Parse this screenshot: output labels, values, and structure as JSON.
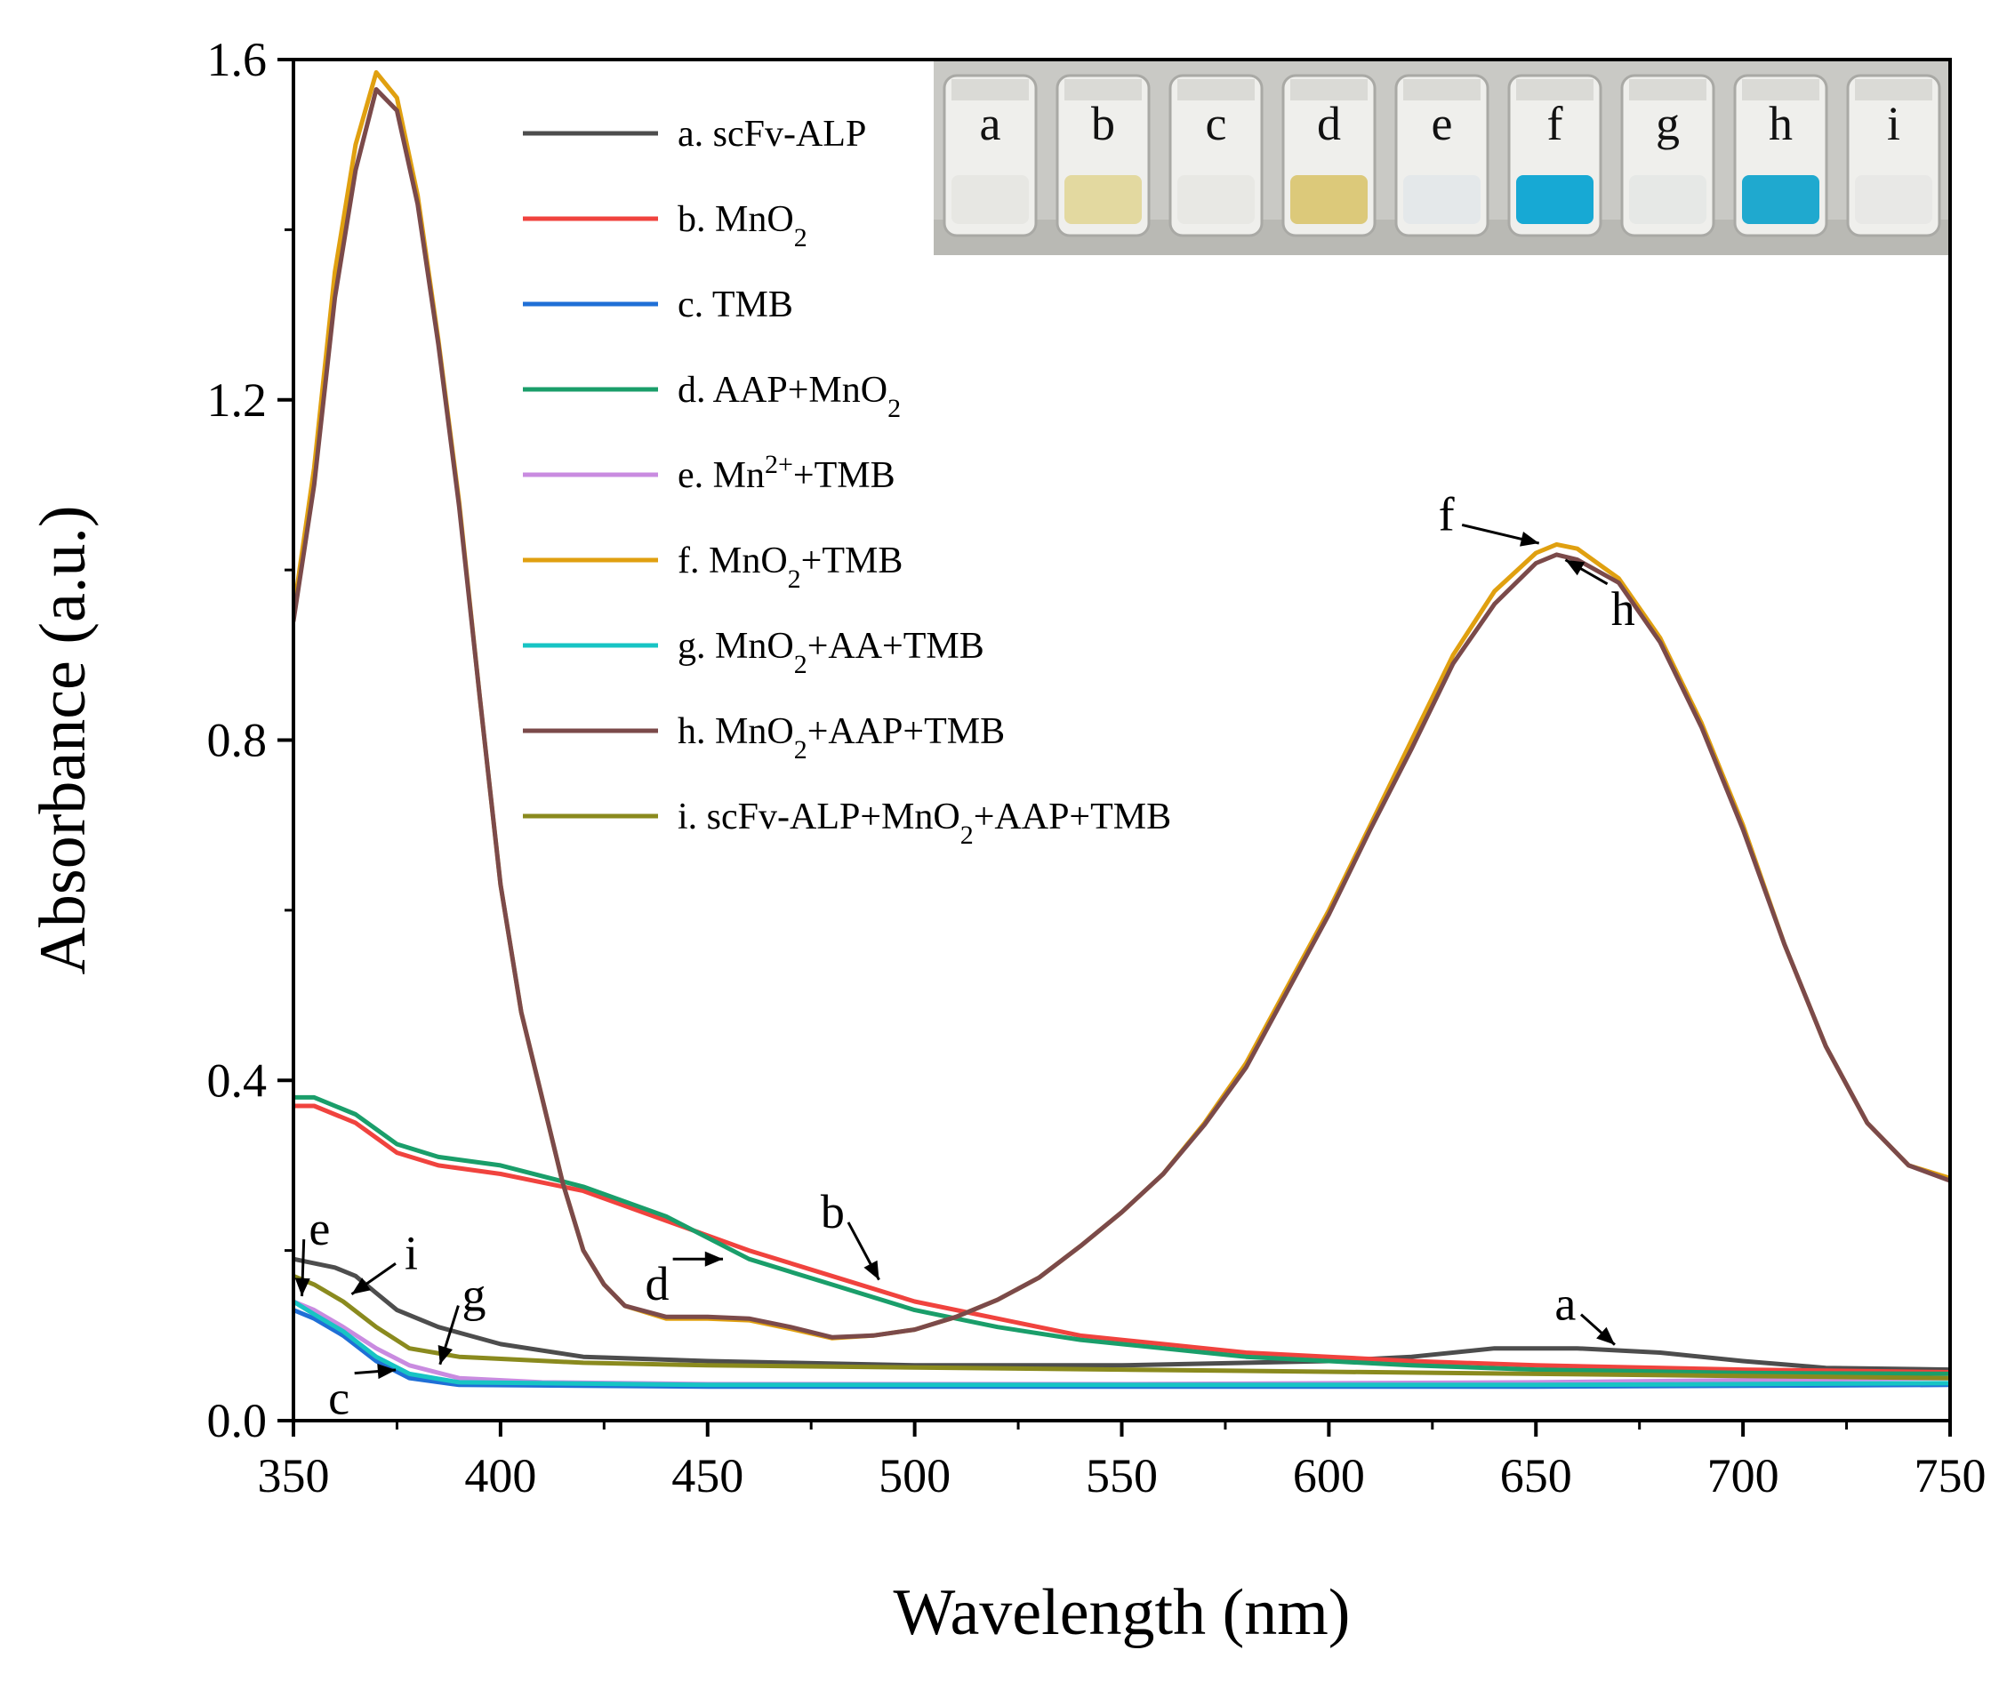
{
  "chart_data": {
    "type": "line",
    "xlabel": "Wavelength (nm)",
    "ylabel": "Absorbance (a.u.)",
    "xlim": [
      350,
      750
    ],
    "ylim": [
      0,
      1.6
    ],
    "x_ticks": [
      350,
      400,
      450,
      500,
      550,
      600,
      650,
      700,
      750
    ],
    "x_tick_labels": [
      "350",
      "400",
      "450",
      "500",
      "550",
      "600",
      "650",
      "700",
      "750"
    ],
    "y_ticks": [
      0,
      0.4,
      0.8,
      1.2,
      1.6
    ],
    "y_tick_labels": [
      "0.0",
      "0.4",
      "0.8",
      "1.2",
      "1.6"
    ],
    "legend_position": "top-center",
    "series": [
      {
        "id": "a",
        "name": "a. scFv-ALP",
        "color": "#4d4d4d",
        "points": [
          [
            350,
            0.19
          ],
          [
            360,
            0.18
          ],
          [
            365,
            0.17
          ],
          [
            370,
            0.15
          ],
          [
            375,
            0.13
          ],
          [
            385,
            0.11
          ],
          [
            400,
            0.09
          ],
          [
            420,
            0.075
          ],
          [
            450,
            0.07
          ],
          [
            500,
            0.065
          ],
          [
            550,
            0.065
          ],
          [
            600,
            0.07
          ],
          [
            620,
            0.075
          ],
          [
            640,
            0.085
          ],
          [
            660,
            0.085
          ],
          [
            680,
            0.08
          ],
          [
            700,
            0.07
          ],
          [
            720,
            0.062
          ],
          [
            750,
            0.06
          ]
        ]
      },
      {
        "id": "b",
        "name": "b. MnO",
        "name_sub": "2",
        "color": "#f0433e",
        "points": [
          [
            350,
            0.37
          ],
          [
            355,
            0.37
          ],
          [
            365,
            0.35
          ],
          [
            375,
            0.315
          ],
          [
            385,
            0.3
          ],
          [
            400,
            0.29
          ],
          [
            420,
            0.27
          ],
          [
            440,
            0.235
          ],
          [
            460,
            0.2
          ],
          [
            480,
            0.17
          ],
          [
            500,
            0.14
          ],
          [
            520,
            0.12
          ],
          [
            540,
            0.1
          ],
          [
            560,
            0.09
          ],
          [
            580,
            0.08
          ],
          [
            600,
            0.075
          ],
          [
            620,
            0.07
          ],
          [
            650,
            0.065
          ],
          [
            700,
            0.06
          ],
          [
            750,
            0.057
          ]
        ]
      },
      {
        "id": "c",
        "name": "c. TMB",
        "color": "#1f6fd6",
        "points": [
          [
            350,
            0.13
          ],
          [
            355,
            0.12
          ],
          [
            362,
            0.1
          ],
          [
            370,
            0.07
          ],
          [
            378,
            0.05
          ],
          [
            390,
            0.042
          ],
          [
            450,
            0.04
          ],
          [
            550,
            0.04
          ],
          [
            650,
            0.04
          ],
          [
            750,
            0.042
          ]
        ]
      },
      {
        "id": "d",
        "name": "d. AAP+MnO",
        "name_sub": "2",
        "color": "#1a9e6a",
        "points": [
          [
            350,
            0.38
          ],
          [
            355,
            0.38
          ],
          [
            365,
            0.36
          ],
          [
            375,
            0.325
          ],
          [
            385,
            0.31
          ],
          [
            400,
            0.3
          ],
          [
            420,
            0.275
          ],
          [
            440,
            0.24
          ],
          [
            460,
            0.19
          ],
          [
            480,
            0.16
          ],
          [
            500,
            0.13
          ],
          [
            520,
            0.11
          ],
          [
            540,
            0.095
          ],
          [
            560,
            0.085
          ],
          [
            580,
            0.075
          ],
          [
            600,
            0.07
          ],
          [
            620,
            0.065
          ],
          [
            650,
            0.06
          ],
          [
            700,
            0.056
          ],
          [
            750,
            0.055
          ]
        ]
      },
      {
        "id": "e",
        "name": "e. Mn",
        "name_sup": "2+",
        "name_tail": "+TMB",
        "color": "#c98be0",
        "points": [
          [
            350,
            0.14
          ],
          [
            355,
            0.13
          ],
          [
            362,
            0.11
          ],
          [
            370,
            0.085
          ],
          [
            378,
            0.065
          ],
          [
            390,
            0.05
          ],
          [
            410,
            0.045
          ],
          [
            450,
            0.043
          ],
          [
            550,
            0.043
          ],
          [
            650,
            0.045
          ],
          [
            750,
            0.05
          ]
        ]
      },
      {
        "id": "f",
        "name": "f. MnO",
        "name_sub": "2",
        "name_tail": "+TMB",
        "color": "#e0a010",
        "points": [
          [
            350,
            0.95
          ],
          [
            355,
            1.12
          ],
          [
            360,
            1.35
          ],
          [
            365,
            1.5
          ],
          [
            370,
            1.585
          ],
          [
            375,
            1.555
          ],
          [
            380,
            1.44
          ],
          [
            385,
            1.27
          ],
          [
            390,
            1.08
          ],
          [
            395,
            0.85
          ],
          [
            400,
            0.63
          ],
          [
            405,
            0.48
          ],
          [
            410,
            0.38
          ],
          [
            415,
            0.28
          ],
          [
            420,
            0.2
          ],
          [
            425,
            0.16
          ],
          [
            430,
            0.135
          ],
          [
            440,
            0.12
          ],
          [
            450,
            0.12
          ],
          [
            460,
            0.118
          ],
          [
            470,
            0.108
          ],
          [
            480,
            0.097
          ],
          [
            490,
            0.1
          ],
          [
            500,
            0.107
          ],
          [
            510,
            0.122
          ],
          [
            520,
            0.142
          ],
          [
            530,
            0.168
          ],
          [
            540,
            0.205
          ],
          [
            550,
            0.245
          ],
          [
            560,
            0.29
          ],
          [
            570,
            0.35
          ],
          [
            580,
            0.42
          ],
          [
            590,
            0.51
          ],
          [
            600,
            0.6
          ],
          [
            610,
            0.7
          ],
          [
            620,
            0.8
          ],
          [
            630,
            0.9
          ],
          [
            640,
            0.975
          ],
          [
            650,
            1.02
          ],
          [
            655,
            1.03
          ],
          [
            660,
            1.025
          ],
          [
            670,
            0.99
          ],
          [
            680,
            0.92
          ],
          [
            690,
            0.82
          ],
          [
            700,
            0.7
          ],
          [
            710,
            0.56
          ],
          [
            720,
            0.44
          ],
          [
            730,
            0.35
          ],
          [
            740,
            0.3
          ],
          [
            750,
            0.285
          ]
        ]
      },
      {
        "id": "g",
        "name": "g. MnO",
        "name_sub": "2",
        "name_tail": "+AA+TMB",
        "color": "#17c4c4",
        "points": [
          [
            350,
            0.14
          ],
          [
            355,
            0.125
          ],
          [
            362,
            0.105
          ],
          [
            370,
            0.075
          ],
          [
            378,
            0.055
          ],
          [
            390,
            0.045
          ],
          [
            450,
            0.042
          ],
          [
            550,
            0.042
          ],
          [
            650,
            0.042
          ],
          [
            750,
            0.044
          ]
        ]
      },
      {
        "id": "h",
        "name": "h. MnO",
        "name_sub": "2",
        "name_tail": "+AAP+TMB",
        "color": "#7b4a4a",
        "points": [
          [
            350,
            0.94
          ],
          [
            355,
            1.1
          ],
          [
            360,
            1.32
          ],
          [
            365,
            1.47
          ],
          [
            370,
            1.565
          ],
          [
            375,
            1.54
          ],
          [
            380,
            1.43
          ],
          [
            385,
            1.265
          ],
          [
            390,
            1.075
          ],
          [
            395,
            0.85
          ],
          [
            400,
            0.63
          ],
          [
            405,
            0.48
          ],
          [
            410,
            0.38
          ],
          [
            415,
            0.28
          ],
          [
            420,
            0.2
          ],
          [
            425,
            0.16
          ],
          [
            430,
            0.135
          ],
          [
            440,
            0.122
          ],
          [
            450,
            0.122
          ],
          [
            460,
            0.12
          ],
          [
            470,
            0.11
          ],
          [
            480,
            0.098
          ],
          [
            490,
            0.1
          ],
          [
            500,
            0.107
          ],
          [
            510,
            0.122
          ],
          [
            520,
            0.142
          ],
          [
            530,
            0.168
          ],
          [
            540,
            0.205
          ],
          [
            550,
            0.245
          ],
          [
            560,
            0.29
          ],
          [
            570,
            0.348
          ],
          [
            580,
            0.415
          ],
          [
            590,
            0.505
          ],
          [
            600,
            0.595
          ],
          [
            610,
            0.695
          ],
          [
            620,
            0.79
          ],
          [
            630,
            0.89
          ],
          [
            640,
            0.96
          ],
          [
            650,
            1.008
          ],
          [
            655,
            1.018
          ],
          [
            660,
            1.012
          ],
          [
            670,
            0.985
          ],
          [
            680,
            0.915
          ],
          [
            690,
            0.815
          ],
          [
            700,
            0.695
          ],
          [
            710,
            0.56
          ],
          [
            720,
            0.44
          ],
          [
            730,
            0.35
          ],
          [
            740,
            0.3
          ],
          [
            750,
            0.282
          ]
        ]
      },
      {
        "id": "i",
        "name": "i. scFv-ALP+MnO",
        "name_sub": "2",
        "name_tail": "+AAP+TMB",
        "color": "#8a8a1e",
        "points": [
          [
            350,
            0.17
          ],
          [
            355,
            0.16
          ],
          [
            362,
            0.14
          ],
          [
            370,
            0.11
          ],
          [
            378,
            0.085
          ],
          [
            390,
            0.075
          ],
          [
            420,
            0.068
          ],
          [
            450,
            0.065
          ],
          [
            550,
            0.06
          ],
          [
            650,
            0.055
          ],
          [
            750,
            0.05
          ]
        ]
      }
    ],
    "annotations": [
      {
        "label": "f",
        "x": 652,
        "y": 1.03
      },
      {
        "label": "h",
        "x": 656,
        "y": 1.015
      },
      {
        "label": "b",
        "x": 492,
        "y": 0.16
      },
      {
        "label": "d",
        "x": 455,
        "y": 0.19
      },
      {
        "label": "a",
        "x": 670,
        "y": 0.085
      },
      {
        "label": "e",
        "x": 352,
        "y": 0.14
      },
      {
        "label": "i",
        "x": 363,
        "y": 0.145
      },
      {
        "label": "g",
        "x": 385,
        "y": 0.06
      },
      {
        "label": "c",
        "x": 376,
        "y": 0.06
      }
    ]
  },
  "inset": {
    "description_labels": [
      "a",
      "b",
      "c",
      "d",
      "e",
      "f",
      "g",
      "h",
      "i"
    ],
    "vial_colors": [
      "#e7e7e3",
      "#e3d9a0",
      "#e8e8e4",
      "#dcc97a",
      "#e4e8ea",
      "#17a9d4",
      "#e6e8e6",
      "#1fa9cf",
      "#e8e8e6"
    ],
    "background_color": "#c9c9c5"
  }
}
